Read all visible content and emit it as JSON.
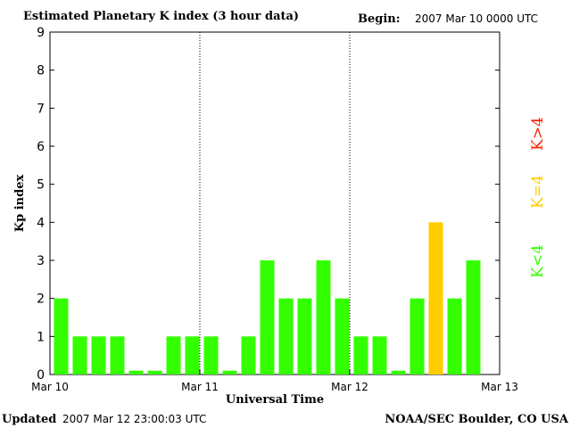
{
  "header": {
    "title": "Estimated Planetary K index (3 hour data)",
    "begin_label": "Begin:",
    "begin_value": "2007 Mar 10 0000 UTC"
  },
  "footer": {
    "updated_label": "Updated",
    "updated_value": "2007 Mar 12 23:00:03 UTC",
    "credit": "NOAA/SEC Boulder, CO USA"
  },
  "legend": {
    "high": "K>4",
    "equal": "K=4",
    "low": "K<4"
  },
  "colors": {
    "low": "#33ff00",
    "equal": "#ffcc00",
    "high": "#ff2200",
    "axis": "#000000"
  },
  "chart_data": {
    "type": "bar",
    "title": "Estimated Planetary K index (3 hour data)",
    "xlabel": "Universal Time",
    "ylabel": "Kp index",
    "ylim": [
      0,
      9
    ],
    "yticks": [
      "0",
      "1",
      "2",
      "3",
      "4",
      "5",
      "6",
      "7",
      "8",
      "9"
    ],
    "xticks": [
      "Mar 10",
      "Mar 11",
      "Mar 12",
      "Mar 13"
    ],
    "interval_hours": 3,
    "values": [
      2,
      1,
      1,
      1,
      0,
      0,
      1,
      1,
      1,
      0,
      1,
      3,
      2,
      2,
      3,
      2,
      1,
      1,
      0,
      2,
      4,
      2,
      3
    ],
    "day_separators": [
      "Mar 11",
      "Mar 12"
    ],
    "grid": false
  }
}
